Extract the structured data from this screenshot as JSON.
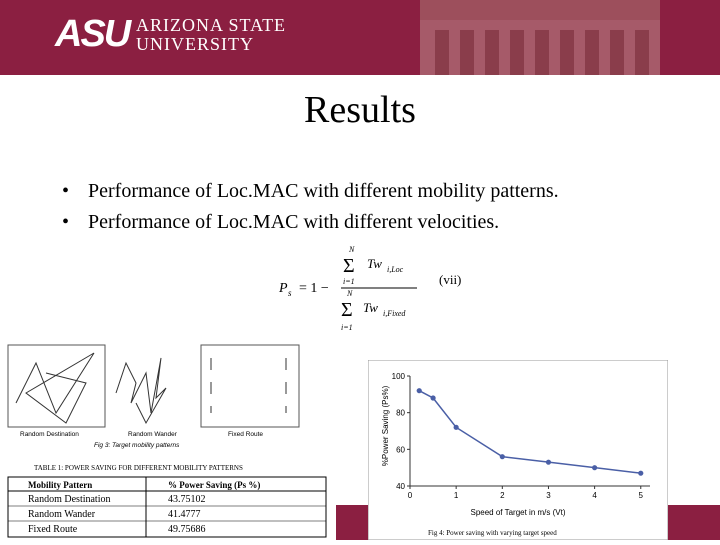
{
  "header": {
    "logo_mark": "ASU",
    "logo_line1": "ARIZONA STATE",
    "logo_line2": "UNIVERSITY",
    "bg_color": "#8b1f41"
  },
  "slide": {
    "title": "Results",
    "bullets": [
      "Performance of Loc.MAC with different mobility patterns.",
      "Performance of Loc.MAC with different velocities."
    ],
    "bullet_symbol": "•"
  },
  "formula": {
    "lhs": "P",
    "lhs_sub": "s",
    "eq": "= 1 −",
    "sum_top": "N",
    "sum_bottom": "i=1",
    "numerator_term": "Tw",
    "numerator_sub": "i,Loc",
    "denominator_term": "Tw",
    "denominator_sub": "i,Fixed",
    "label": "(vii)"
  },
  "mobility_figure": {
    "labels": [
      "Random Destination",
      "Random Wander",
      "Fixed Route"
    ],
    "caption": "Fig 3: Target mobility patterns"
  },
  "table": {
    "caption": "TABLE 1: POWER SAVING FOR DIFFERENT MOBILITY PATTERNS",
    "headers": [
      "Mobility Pattern",
      "% Power Saving (Ps %)"
    ],
    "rows": [
      [
        "Random Destination",
        "43.75102"
      ],
      [
        "Random Wander",
        "41.4777"
      ],
      [
        "Fixed Route",
        "49.75686"
      ]
    ]
  },
  "chart_data": {
    "type": "line",
    "x": [
      0.2,
      0.5,
      1,
      2,
      3,
      4,
      5
    ],
    "y": [
      92,
      88,
      72,
      56,
      53,
      50,
      47
    ],
    "xlabel": "Speed of Target in m/s (Vt)",
    "ylabel": "%Power Saving (Ps%)",
    "xlim": [
      0,
      5.2
    ],
    "ylim": [
      40,
      100
    ],
    "xticks": [
      0,
      1,
      2,
      3,
      4,
      5
    ],
    "yticks": [
      40,
      60,
      80,
      100
    ],
    "caption": "Fig 4: Power saving with varying target speed",
    "line_color": "#4a5fa6",
    "grid": false
  }
}
